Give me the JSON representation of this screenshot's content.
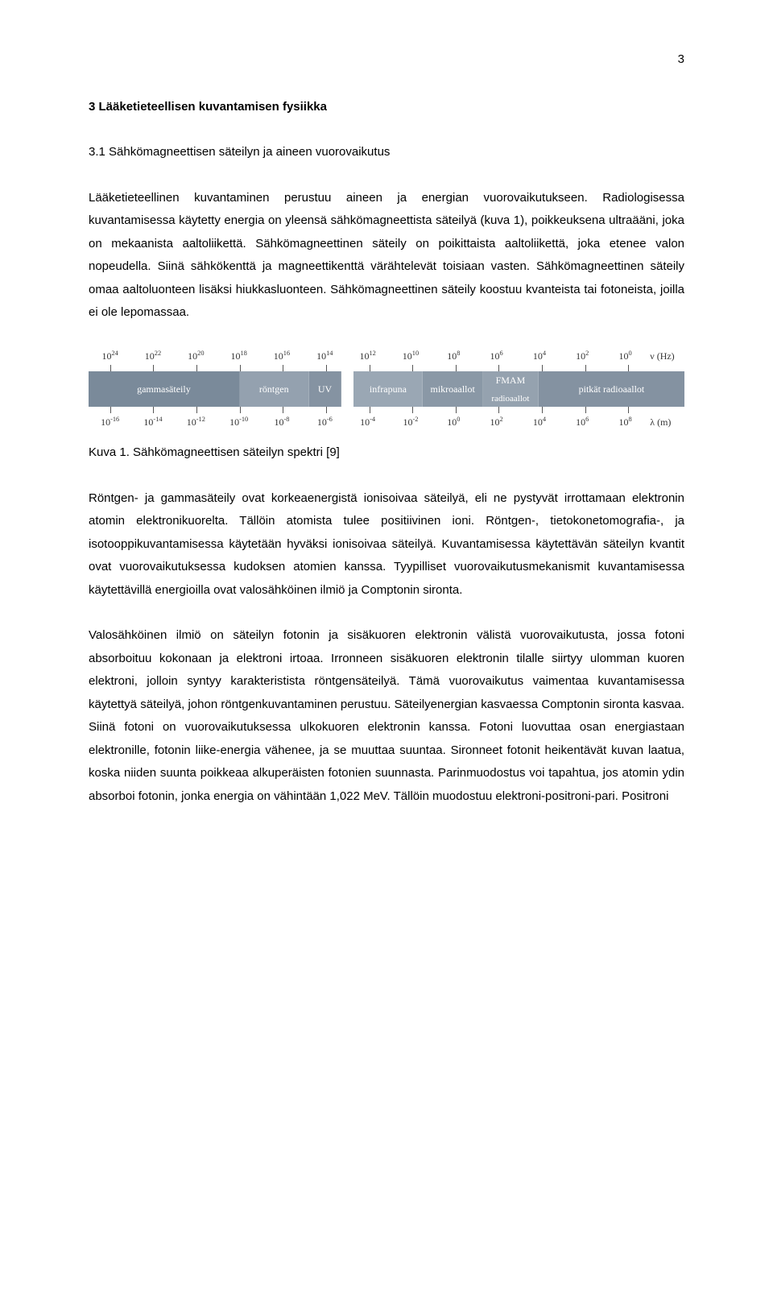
{
  "page_number": "3",
  "heading1": "3   Lääketieteellisen kuvantamisen fysiikka",
  "heading2": "3.1   Sähkömagneettisen säteilyn ja aineen vuorovaikutus",
  "para1": "Lääketieteellinen kuvantaminen perustuu aineen ja energian vuorovaikutukseen. Radiologisessa kuvantamisessa käytetty energia on yleensä sähkömagneettista säteilyä (kuva 1), poikkeuksena ultraääni, joka on mekaanista aaltoliikettä. Sähkömagneettinen säteily on poikittaista aaltoliikettä, joka etenee valon nopeudella. Siinä sähkökenttä ja magneettikenttä värähtelevät toisiaan vasten. Sähkömagneettinen säteily omaa aaltoluonteen lisäksi hiukkasluonteen. Sähkömagneettinen säteily koostuu kvanteista tai fotoneista, joilla ei ole lepomassaa.",
  "caption": "Kuva 1. Sähkömagneettisen säteilyn spektri [9]",
  "para2": "Röntgen- ja gammasäteily ovat korkeaenergistä ionisoivaa säteilyä, eli ne pystyvät irrottamaan elektronin atomin elektronikuorelta. Tällöin atomista tulee positiivinen ioni. Röntgen-, tietokonetomografia-, ja isotooppikuvantamisessa käytetään hyväksi ionisoivaa säteilyä. Kuvantamisessa käytettävän säteilyn kvantit ovat vuorovaikutuksessa kudoksen atomien kanssa. Tyypilliset vuorovaikutusmekanismit kuvantamisessa käytettävillä energioilla ovat valosähköinen ilmiö ja Comptonin sironta.",
  "para3": "Valosähköinen ilmiö on säteilyn fotonin ja sisäkuoren elektronin välistä vuorovaikutusta, jossa fotoni absorboituu kokonaan ja elektroni irtoaa. Irronneen sisäkuoren elektronin tilalle siirtyy ulomman kuoren elektroni, jolloin syntyy karakteristista röntgensäteilyä. Tämä vuorovaikutus vaimentaa kuvantamisessa käytettyä säteilyä, johon röntgenkuvantaminen perustuu. Säteilyenergian kasvaessa Comptonin sironta kasvaa. Siinä fotoni on vuorovaikutuksessa ulkokuoren elektronin kanssa. Fotoni luovuttaa osan energiastaan elektronille, fotonin liike-energia vähenee, ja se muuttaa suuntaa. Sironneet fotonit heikentävät kuvan laatua, koska niiden suunta poikkeaa alkuperäisten fotonien suunnasta. Parinmuodostus voi tapahtua, jos atomin ydin absorboi fotonin, jonka energia on vähintään 1,022 MeV. Tällöin muodostuu elektroni-positroni-pari. Positroni",
  "spectrum": {
    "top_unit": "ν (Hz)",
    "bottom_unit": "λ (m)",
    "top_exponents": [
      "24",
      "22",
      "20",
      "18",
      "16",
      "14",
      "12",
      "10",
      "8",
      "6",
      "4",
      "2",
      "0"
    ],
    "bottom_exponents": [
      "-16",
      "-14",
      "-12",
      "-10",
      "-8",
      "-6",
      "-4",
      "-2",
      "0",
      "2",
      "4",
      "6",
      "8"
    ],
    "bands": [
      {
        "label": "gammasäteily",
        "color": "#7a8a9a",
        "flex": 3.3
      },
      {
        "label": "röntgen",
        "color": "#94a1af",
        "flex": 1.5
      },
      {
        "label": "UV",
        "color": "#8593a2",
        "flex": 0.7
      },
      {
        "label": "",
        "type": "visible",
        "flex": 0.25,
        "colors": [
          "#6b3db3",
          "#2a5fd6",
          "#2fb24a",
          "#f5e03a",
          "#f29b1f",
          "#e0352b"
        ]
      },
      {
        "label": "infrapuna",
        "color": "#9aa7b4",
        "flex": 1.5
      },
      {
        "label": "mikroaallot",
        "color": "#8a98a6",
        "flex": 1.3
      },
      {
        "label": "",
        "type": "radio",
        "flex": 1.2,
        "fm": "FM",
        "am": "AM",
        "sub": "radioaallot",
        "color": "#95a2af"
      },
      {
        "label": "pitkät radioaallot",
        "color": "#8492a1",
        "flex": 3.2
      }
    ]
  }
}
